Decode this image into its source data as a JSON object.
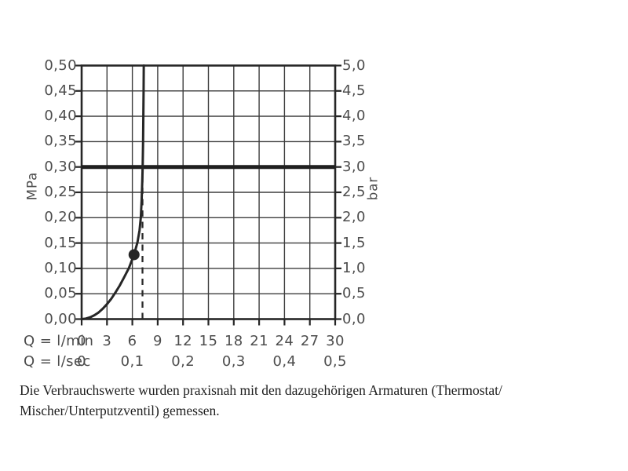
{
  "chart": {
    "left_axis": {
      "unit": "MPa",
      "tick_labels": [
        "0,50",
        "0,45",
        "0,40",
        "0,35",
        "0,30",
        "0,25",
        "0,20",
        "0,15",
        "0,10",
        "0,05",
        "0,00"
      ]
    },
    "right_axis": {
      "unit": "bar",
      "tick_labels": [
        "5,0",
        "4,5",
        "4,0",
        "3,5",
        "3,0",
        "2,5",
        "2,0",
        "1,5",
        "1,0",
        "0,5",
        "0,0"
      ]
    },
    "x_axis": {
      "row1_label": "Q = l/min",
      "row1_ticks": [
        "0",
        "3",
        "6",
        "9",
        "12",
        "15",
        "18",
        "21",
        "24",
        "27",
        "30"
      ],
      "row2_label": "Q = l/sec",
      "row2_ticks": [
        {
          "q": 0,
          "label": "0"
        },
        {
          "q": 6,
          "label": "0,1"
        },
        {
          "q": 12,
          "label": "0,2"
        },
        {
          "q": 18,
          "label": "0,3"
        },
        {
          "q": 24,
          "label": "0,4"
        },
        {
          "q": 30,
          "label": "0,5"
        }
      ]
    }
  },
  "chart_data": {
    "type": "line",
    "title": "",
    "xlabel": "Q = l/min / Q = l/sec",
    "ylabel_left": "MPa",
    "ylabel_right": "bar",
    "xlim": [
      0,
      30
    ],
    "ylim": [
      0,
      0.5
    ],
    "grid": true,
    "x_ticks_l_min": [
      0,
      3,
      6,
      9,
      12,
      15,
      18,
      21,
      24,
      27,
      30
    ],
    "x_ticks_l_sec": [
      0,
      0.1,
      0.2,
      0.3,
      0.4,
      0.5
    ],
    "y_ticks_mpa": [
      0,
      0.05,
      0.1,
      0.15,
      0.2,
      0.25,
      0.3,
      0.35,
      0.4,
      0.45,
      0.5
    ],
    "y_ticks_bar": [
      0,
      0.5,
      1.0,
      1.5,
      2.0,
      2.5,
      3.0,
      3.5,
      4.0,
      4.5,
      5.0
    ],
    "series": [
      {
        "name": "pressure-flow-curve",
        "points": [
          [
            0,
            0
          ],
          [
            0.5,
            0.001
          ],
          [
            1,
            0.0035
          ],
          [
            1.5,
            0.0075
          ],
          [
            2,
            0.013
          ],
          [
            2.5,
            0.0205
          ],
          [
            3,
            0.0295
          ],
          [
            3.5,
            0.04
          ],
          [
            4,
            0.0525
          ],
          [
            4.5,
            0.066
          ],
          [
            5,
            0.0815
          ],
          [
            5.6,
            0.101
          ],
          [
            6.2,
            0.127
          ],
          [
            6.6,
            0.151
          ],
          [
            6.85,
            0.175
          ],
          [
            7.0,
            0.2
          ],
          [
            7.1,
            0.235
          ],
          [
            7.17,
            0.27
          ],
          [
            7.22,
            0.3
          ],
          [
            7.27,
            0.35
          ],
          [
            7.3,
            0.4
          ],
          [
            7.33,
            0.45
          ],
          [
            7.35,
            0.5
          ]
        ]
      }
    ],
    "marker_point": {
      "q_l_min": 6.2,
      "p_mpa": 0.127
    },
    "reference_line": {
      "p_mpa": 0.3,
      "style": "thick-solid"
    },
    "dashed_vertical_line": {
      "q_l_min": 7.2,
      "from_p_mpa": 0,
      "to_p_mpa": 0.3
    }
  },
  "colors": {
    "grid": "#3d3d3d",
    "border": "#262626",
    "curve": "#262626",
    "marker": "#262626",
    "reference_line": "#1f1f1f",
    "dashed_line": "#2a2a2a",
    "tick_text": "#4d4d4d",
    "caption_text": "#1e1e1e",
    "background": "#ffffff"
  },
  "caption": {
    "line1": "Die Verbrauchswerte wurden praxisnah mit den dazugehörigen Armaturen (Thermostat/",
    "line2": "Mischer/Unterputzventil) gemessen."
  }
}
